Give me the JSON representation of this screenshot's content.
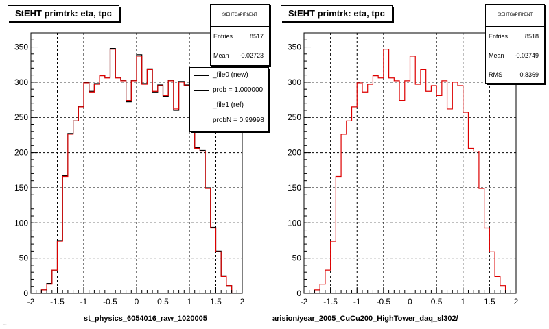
{
  "chart_data": [
    {
      "type": "histogram",
      "title": "StEHT primtrk: eta, tpc",
      "xlabel": "st_physics_6054016_raw_1020005",
      "xlim": [
        -2,
        2
      ],
      "ylim": [
        0,
        370
      ],
      "x_ticks": [
        "-2",
        "-1.5",
        "-1",
        "-0.5",
        "0",
        "0.5",
        "1",
        "1.5",
        "2"
      ],
      "y_ticks": [
        "0",
        "50",
        "100",
        "150",
        "200",
        "250",
        "300",
        "350"
      ],
      "grid": true,
      "bin_edges_start": -1.8,
      "bin_width": 0.1,
      "series": [
        {
          "name": "_file0 (new)",
          "color": "#000000",
          "values": [
            5,
            14,
            33,
            75,
            167,
            227,
            245,
            266,
            300,
            287,
            298,
            310,
            307,
            348,
            307,
            303,
            272,
            303,
            339,
            298,
            319,
            286,
            296,
            280,
            303,
            260,
            301,
            296,
            256,
            207,
            203,
            150,
            94,
            60,
            25,
            11
          ]
        },
        {
          "name": "_file1 (ref)",
          "color": "#dd0000",
          "values": [
            5,
            13,
            33,
            74,
            166,
            226,
            245,
            265,
            299,
            286,
            297,
            309,
            306,
            347,
            306,
            302,
            274,
            302,
            337,
            297,
            318,
            287,
            295,
            281,
            302,
            262,
            300,
            295,
            257,
            206,
            202,
            149,
            93,
            59,
            24,
            11
          ]
        }
      ],
      "stats": {
        "box_title": "StEHTGaPIRhENT",
        "entries_label": "Entries",
        "entries": "8517",
        "mean_label": "Mean",
        "mean": "-0.02723"
      },
      "legend": {
        "placement": "top-right",
        "entries": [
          {
            "label": "_file0 (new)",
            "color": "#000000"
          },
          {
            "label": "prob = 1.000000",
            "color": "#000000"
          },
          {
            "label": "_file1 (ref)",
            "color": "#dd0000"
          },
          {
            "label": "probN = 0.99998",
            "color": "#dd0000"
          }
        ]
      }
    },
    {
      "type": "histogram",
      "title": "StEHT primtrk: eta, tpc",
      "xlabel": "arision/year_2005_CuCu200_HighTower_daq_sl302/",
      "xlim": [
        -2,
        2
      ],
      "ylim": [
        0,
        370
      ],
      "x_ticks": [
        "-2",
        "-1.5",
        "-1",
        "-0.5",
        "0",
        "0.5",
        "1",
        "1.5",
        "2"
      ],
      "y_ticks": [
        "0",
        "50",
        "100",
        "150",
        "200",
        "250",
        "300",
        "350"
      ],
      "grid": true,
      "bin_edges_start": -1.8,
      "bin_width": 0.1,
      "series": [
        {
          "name": "",
          "color": "#dd0000",
          "values": [
            5,
            13,
            33,
            74,
            166,
            226,
            245,
            265,
            299,
            286,
            297,
            309,
            306,
            347,
            306,
            302,
            274,
            302,
            337,
            297,
            318,
            287,
            295,
            281,
            302,
            262,
            300,
            295,
            257,
            206,
            202,
            149,
            93,
            59,
            24,
            11
          ]
        }
      ],
      "stats": {
        "box_title": "StEHTGaPIRhENT",
        "entries_label": "Entries",
        "entries": "8518",
        "mean_label": "Mean",
        "mean": "-0.02749",
        "rms_label": "RMS",
        "rms": "0.8369"
      }
    }
  ],
  "footer_text": "...."
}
